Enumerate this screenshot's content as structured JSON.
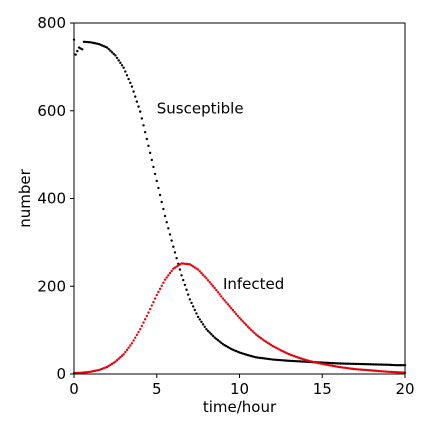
{
  "chart_data": {
    "type": "scatter",
    "xlabel": "time/hour",
    "ylabel": "number",
    "xlim": [
      0,
      20
    ],
    "ylim": [
      0,
      800
    ],
    "xticks": [
      "0",
      "5",
      "10",
      "15",
      "20"
    ],
    "yticks": [
      "0",
      "200",
      "400",
      "600",
      "800"
    ],
    "grid": false,
    "annotations": [
      {
        "text": "Susceptible",
        "x": 5.0,
        "y": 605
      },
      {
        "text": "Infected",
        "x": 9.0,
        "y": 205
      }
    ],
    "series": [
      {
        "name": "Susceptible",
        "color": "#000000",
        "points": [
          [
            0.0,
            762
          ],
          [
            0.1,
            728
          ],
          [
            0.3,
            744
          ],
          [
            0.5,
            740
          ],
          [
            0.6,
            757
          ],
          [
            1.0,
            756
          ],
          [
            1.5,
            752
          ],
          [
            2.0,
            744
          ],
          [
            2.5,
            726
          ],
          [
            3.0,
            698
          ],
          [
            3.5,
            655
          ],
          [
            4.0,
            598
          ],
          [
            4.5,
            520
          ],
          [
            5.0,
            440
          ],
          [
            5.5,
            360
          ],
          [
            6.0,
            290
          ],
          [
            6.5,
            225
          ],
          [
            7.0,
            170
          ],
          [
            7.5,
            130
          ],
          [
            8.0,
            102
          ],
          [
            8.5,
            83
          ],
          [
            9.0,
            68
          ],
          [
            9.5,
            57
          ],
          [
            10.0,
            49
          ],
          [
            10.5,
            43
          ],
          [
            11.0,
            38
          ],
          [
            12.0,
            33
          ],
          [
            13.0,
            30
          ],
          [
            14.0,
            28
          ],
          [
            15.0,
            26
          ],
          [
            16.0,
            24
          ],
          [
            17.0,
            23
          ],
          [
            18.0,
            22
          ],
          [
            19.0,
            21
          ],
          [
            19.5,
            20
          ],
          [
            20.0,
            20
          ]
        ]
      },
      {
        "name": "Infected",
        "color": "#e8000b",
        "points": [
          [
            0.0,
            2
          ],
          [
            0.5,
            3
          ],
          [
            1.0,
            5
          ],
          [
            1.5,
            9
          ],
          [
            2.0,
            16
          ],
          [
            2.5,
            28
          ],
          [
            3.0,
            45
          ],
          [
            3.5,
            70
          ],
          [
            4.0,
            102
          ],
          [
            4.5,
            140
          ],
          [
            5.0,
            180
          ],
          [
            5.5,
            215
          ],
          [
            6.0,
            240
          ],
          [
            6.5,
            252
          ],
          [
            7.0,
            250
          ],
          [
            7.5,
            238
          ],
          [
            8.0,
            218
          ],
          [
            8.5,
            196
          ],
          [
            9.0,
            172
          ],
          [
            9.5,
            150
          ],
          [
            10.0,
            128
          ],
          [
            10.5,
            108
          ],
          [
            11.0,
            90
          ],
          [
            11.5,
            76
          ],
          [
            12.0,
            64
          ],
          [
            12.5,
            54
          ],
          [
            13.0,
            45
          ],
          [
            13.5,
            38
          ],
          [
            14.0,
            32
          ],
          [
            14.5,
            27
          ],
          [
            15.0,
            23
          ],
          [
            16.0,
            16
          ],
          [
            17.0,
            11
          ],
          [
            18.0,
            8
          ],
          [
            19.0,
            5
          ],
          [
            20.0,
            3
          ]
        ]
      }
    ]
  }
}
